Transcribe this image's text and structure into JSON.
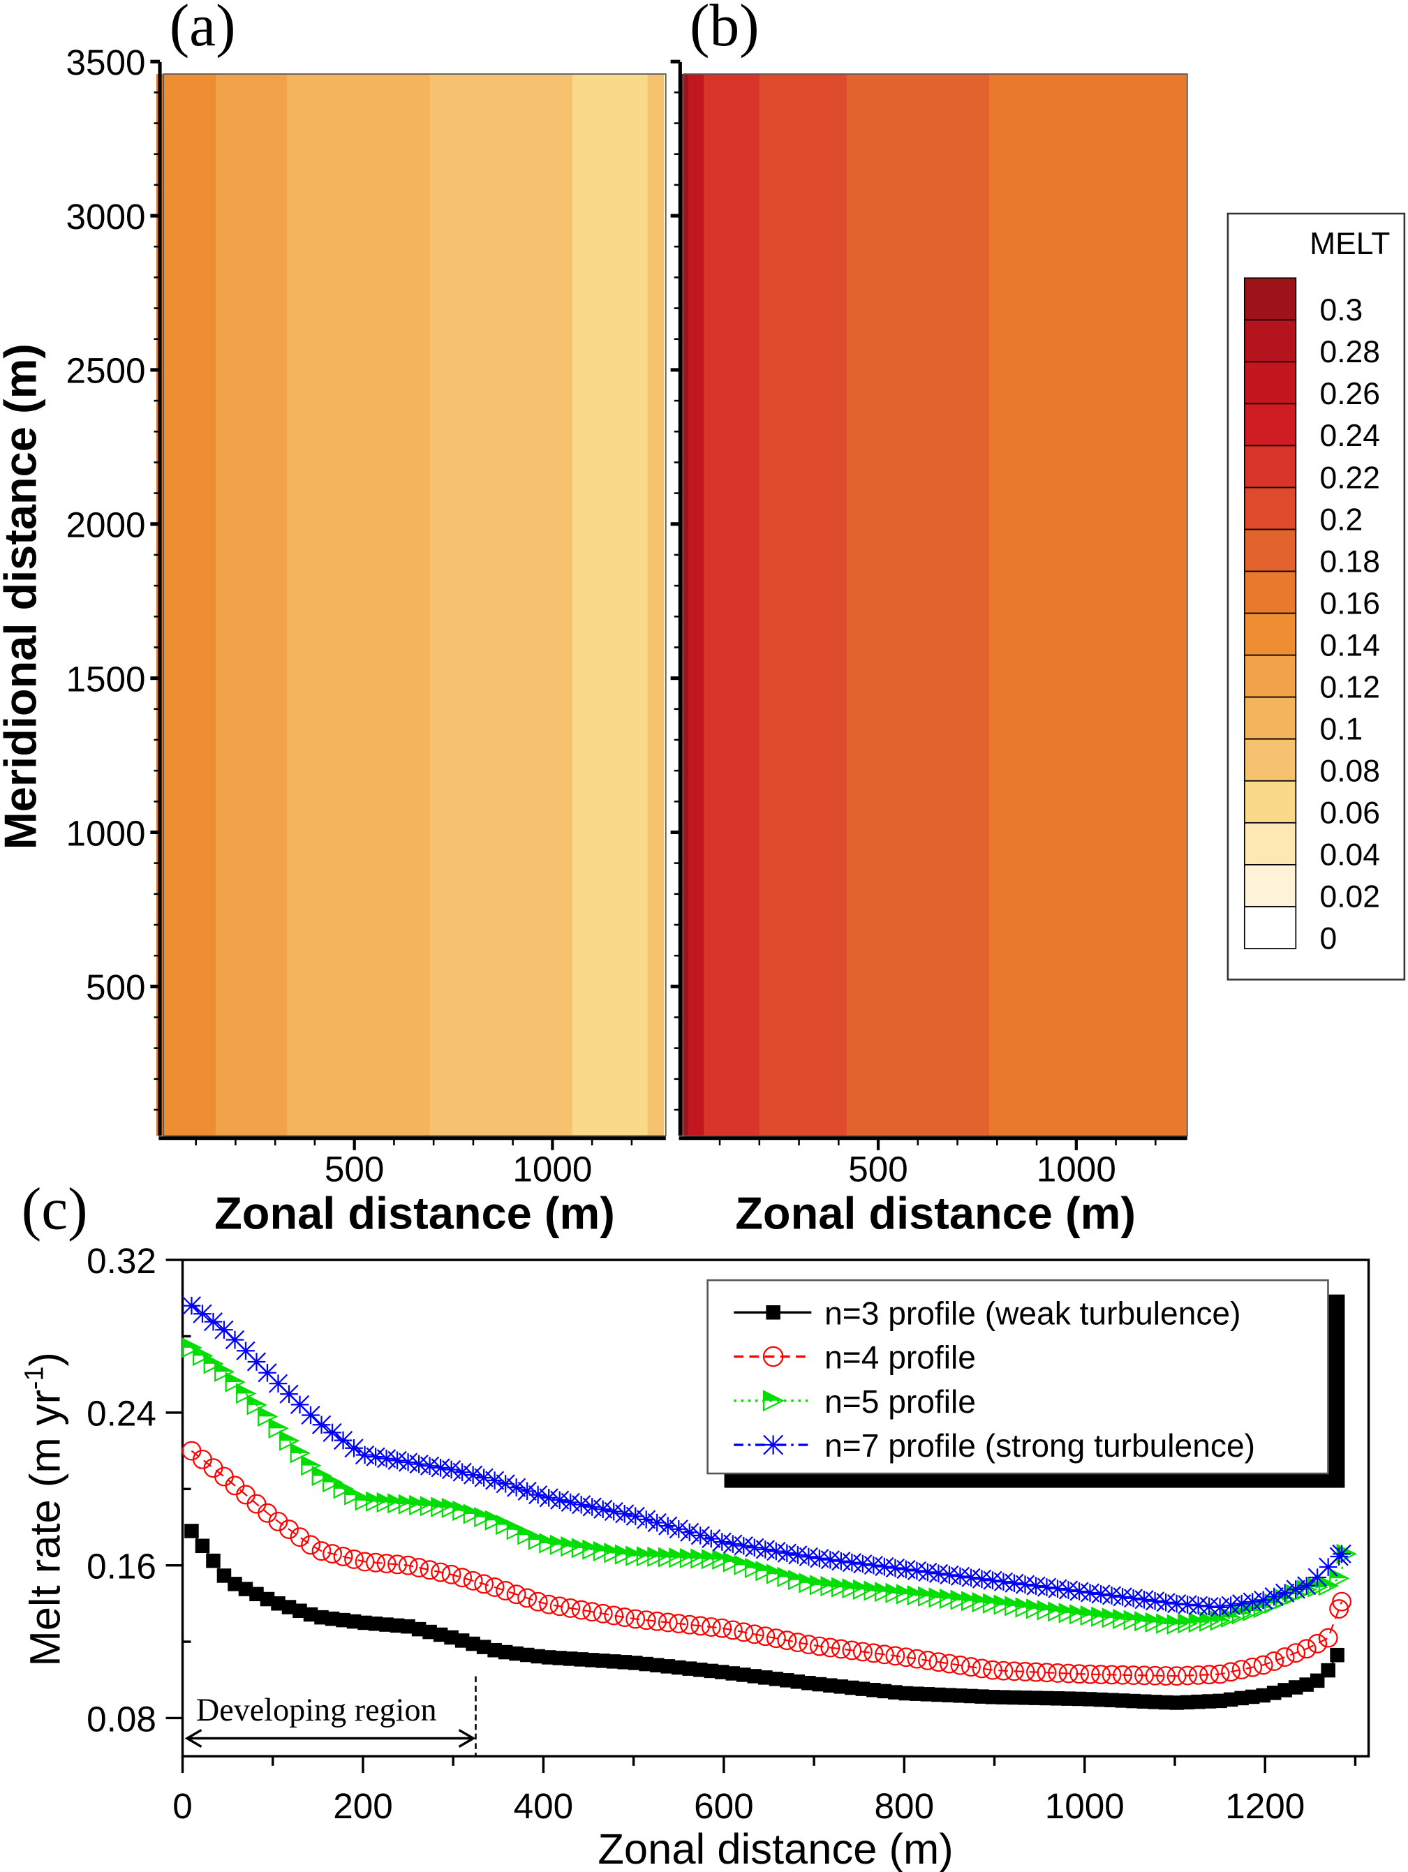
{
  "chart_data": [
    {
      "panel": "(a)",
      "type": "heatmap",
      "xlabel": "Zonal distance (m)",
      "ylabel": "Meridional distance (m)",
      "xticks": [
        "500",
        "1000"
      ],
      "yticks": [
        "500",
        "1000",
        "1500",
        "2000",
        "2500",
        "3000",
        "3500"
      ],
      "xlim": [
        0,
        1280
      ],
      "ylim": [
        0,
        3500
      ],
      "zonal_bands": [
        {
          "x0": 0,
          "x1": 20,
          "melt": 0.16
        },
        {
          "x0": 20,
          "x1": 150,
          "melt": 0.14
        },
        {
          "x0": 150,
          "x1": 330,
          "melt": 0.12
        },
        {
          "x0": 330,
          "x1": 690,
          "melt": 0.1
        },
        {
          "x0": 690,
          "x1": 1050,
          "melt": 0.08
        },
        {
          "x0": 1050,
          "x1": 1240,
          "melt": 0.06
        },
        {
          "x0": 1240,
          "x1": 1280,
          "melt": 0.08
        }
      ]
    },
    {
      "panel": "(b)",
      "type": "heatmap",
      "xlabel": "Zonal distance (m)",
      "xticks": [
        "500",
        "1000"
      ],
      "xlim": [
        0,
        1280
      ],
      "ylim": [
        0,
        3500
      ],
      "zonal_bands": [
        {
          "x0": 0,
          "x1": 20,
          "melt": 0.3
        },
        {
          "x0": 20,
          "x1": 60,
          "melt": 0.26
        },
        {
          "x0": 60,
          "x1": 200,
          "melt": 0.22
        },
        {
          "x0": 200,
          "x1": 420,
          "melt": 0.2
        },
        {
          "x0": 420,
          "x1": 780,
          "melt": 0.18
        },
        {
          "x0": 780,
          "x1": 1280,
          "melt": 0.16
        }
      ],
      "colorbar": {
        "title": "MELT",
        "levels": [
          "0.3",
          "0.28",
          "0.26",
          "0.24",
          "0.22",
          "0.2",
          "0.18",
          "0.16",
          "0.14",
          "0.12",
          "0.1",
          "0.08",
          "0.06",
          "0.04",
          "0.02",
          "0"
        ],
        "colors": [
          "#9e1219",
          "#b3141e",
          "#c3171f",
          "#d01d24",
          "#d8352a",
          "#dd4a2c",
          "#e2632d",
          "#e97a2d",
          "#ee8e33",
          "#f1a24a",
          "#f4b35d",
          "#f7c26f",
          "#fad98a",
          "#fde8b3",
          "#fef3d8",
          "#ffffff"
        ]
      }
    },
    {
      "panel": "(c)",
      "type": "line",
      "xlabel": "Zonal distance (m)",
      "ylabel": "Melt rate (m yr",
      "ylabel_sup": "-1",
      "ylabel_end": ")",
      "xlim": [
        0,
        1300
      ],
      "ylim": [
        0.06,
        0.32
      ],
      "xticks": [
        "0",
        "200",
        "400",
        "600",
        "800",
        "1000",
        "1200"
      ],
      "yticks": [
        "0.08",
        "0.16",
        "0.24",
        "0.32"
      ],
      "annotation": "Developing region",
      "annotation_range": [
        0,
        325
      ],
      "legend_placement": "top-right",
      "series": [
        {
          "name": "n=3 profile (weak turbulence)",
          "color": "#000000",
          "marker": "filled-square",
          "line": "solid",
          "x": [
            10,
            50,
            100,
            150,
            200,
            250,
            300,
            350,
            400,
            500,
            600,
            700,
            800,
            900,
            1000,
            1100,
            1150,
            1200,
            1250,
            1265,
            1280
          ],
          "y": [
            0.178,
            0.152,
            0.141,
            0.133,
            0.13,
            0.128,
            0.122,
            0.115,
            0.112,
            0.109,
            0.104,
            0.098,
            0.093,
            0.091,
            0.09,
            0.088,
            0.089,
            0.092,
            0.098,
            0.101,
            0.113
          ]
        },
        {
          "name": "n=4 profile",
          "color": "#ff0000",
          "marker": "open-circle",
          "line": "dashed",
          "x": [
            10,
            50,
            100,
            150,
            200,
            250,
            300,
            350,
            400,
            500,
            600,
            700,
            800,
            900,
            1000,
            1100,
            1150,
            1200,
            1250,
            1270,
            1285
          ],
          "y": [
            0.22,
            0.205,
            0.185,
            0.168,
            0.162,
            0.16,
            0.155,
            0.148,
            0.14,
            0.132,
            0.127,
            0.118,
            0.112,
            0.105,
            0.103,
            0.102,
            0.103,
            0.108,
            0.117,
            0.122,
            0.141
          ]
        },
        {
          "name": "n=5 profile",
          "color": "#00dd00",
          "marker": "half-filled-triangle-right",
          "line": "dotted",
          "x": [
            10,
            50,
            100,
            150,
            200,
            250,
            300,
            350,
            400,
            500,
            600,
            700,
            800,
            900,
            1000,
            1100,
            1150,
            1200,
            1250,
            1280,
            1290
          ],
          "y": [
            0.274,
            0.26,
            0.235,
            0.208,
            0.194,
            0.192,
            0.19,
            0.183,
            0.172,
            0.165,
            0.163,
            0.15,
            0.145,
            0.14,
            0.134,
            0.129,
            0.131,
            0.138,
            0.148,
            0.15,
            0.166
          ]
        },
        {
          "name": "n=7 profile (strong turbulence)",
          "color": "#0000ff",
          "marker": "asterisk",
          "line": "dash-dot",
          "x": [
            10,
            50,
            100,
            150,
            200,
            250,
            300,
            350,
            400,
            500,
            600,
            700,
            800,
            900,
            1000,
            1100,
            1150,
            1200,
            1250,
            1285
          ],
          "y": [
            0.296,
            0.282,
            0.258,
            0.235,
            0.218,
            0.214,
            0.21,
            0.204,
            0.196,
            0.186,
            0.172,
            0.164,
            0.158,
            0.152,
            0.146,
            0.14,
            0.138,
            0.142,
            0.15,
            0.166
          ]
        }
      ]
    }
  ]
}
